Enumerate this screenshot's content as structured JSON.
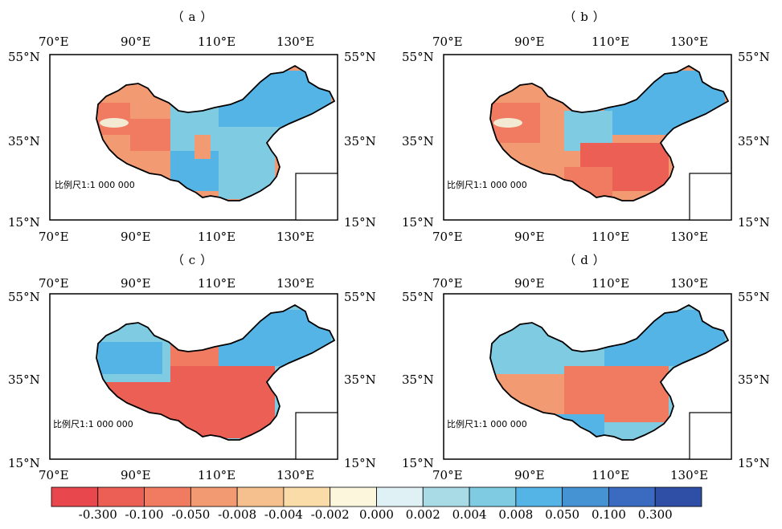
{
  "panels": [
    {
      "label": "（a）",
      "lon_ticks": [
        "70°E",
        "90°E",
        "110°E",
        "130°E"
      ],
      "lat_ticks": [
        "55°N",
        "35°N",
        "15°N"
      ],
      "scale_text": "比例尺1:1 000 000"
    },
    {
      "label": "（b）",
      "lon_ticks": [
        "70°E",
        "90°E",
        "110°E",
        "130°E"
      ],
      "lat_ticks": [
        "55°N",
        "35°N",
        "15°N"
      ],
      "scale_text": "比例尺1:1 000 000"
    },
    {
      "label": "（c）",
      "lon_ticks": [
        "70°E",
        "90°E",
        "110°E",
        "130°E"
      ],
      "lat_ticks": [
        "55°N",
        "35°N",
        "15°N"
      ],
      "scale_text": "比例尺1:1 000 000"
    },
    {
      "label": "（d）",
      "lon_ticks": [
        "70°E",
        "90°E",
        "110°E",
        "130°E"
      ],
      "lat_ticks": [
        "55°N",
        "35°N",
        "15°N"
      ],
      "scale_text": "比例尺1:1 000 000"
    }
  ],
  "colorbar": {
    "labels": [
      "-0.300",
      "-0.100",
      "-0.050",
      "-0.008",
      "-0.004",
      "-0.002",
      "0.000",
      "0.002",
      "0.004",
      "0.008",
      "0.050",
      "0.100",
      "0.300"
    ],
    "colors": [
      "#e8474e",
      "#ec5f55",
      "#f07b60",
      "#f29a72",
      "#f6c08e",
      "#f9dca8",
      "#fbf6dc",
      "#dff1f4",
      "#a9dbe6",
      "#7fcbe2",
      "#55b4e6",
      "#4593d3",
      "#3b6bc0",
      "#2f4fa7"
    ]
  },
  "colors": {
    "land_outside": "#ffffff",
    "coast": "#000000",
    "desert": "#f2ead2"
  }
}
